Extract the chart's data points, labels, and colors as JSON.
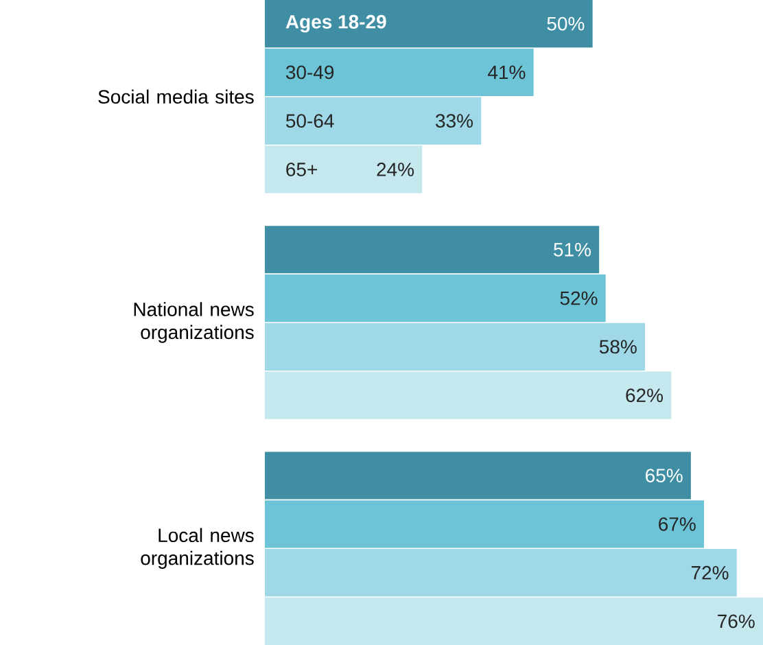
{
  "chart_data": {
    "type": "bar",
    "orientation": "horizontal",
    "categories": [
      "Social media sites",
      "National news organizations",
      "Local news organizations"
    ],
    "series": [
      {
        "name": "Ages 18-29",
        "color": "#3f8ea3",
        "values": [
          50,
          51,
          65
        ],
        "value_labels": [
          "50%",
          "51%",
          "65%"
        ]
      },
      {
        "name": "30-49",
        "color": "#6cc4d6",
        "values": [
          41,
          52,
          67
        ],
        "value_labels": [
          "41%",
          "52%",
          "67%"
        ]
      },
      {
        "name": "50-64",
        "color": "#9fd8e6",
        "values": [
          33,
          58,
          72
        ],
        "value_labels": [
          "33%",
          "58%",
          "72%"
        ]
      },
      {
        "name": "65+",
        "color": "#c5e8ef",
        "values": [
          24,
          62,
          76
        ],
        "value_labels": [
          "24%",
          "62%",
          "76%"
        ]
      }
    ],
    "tick_labels": "y"
  }
}
